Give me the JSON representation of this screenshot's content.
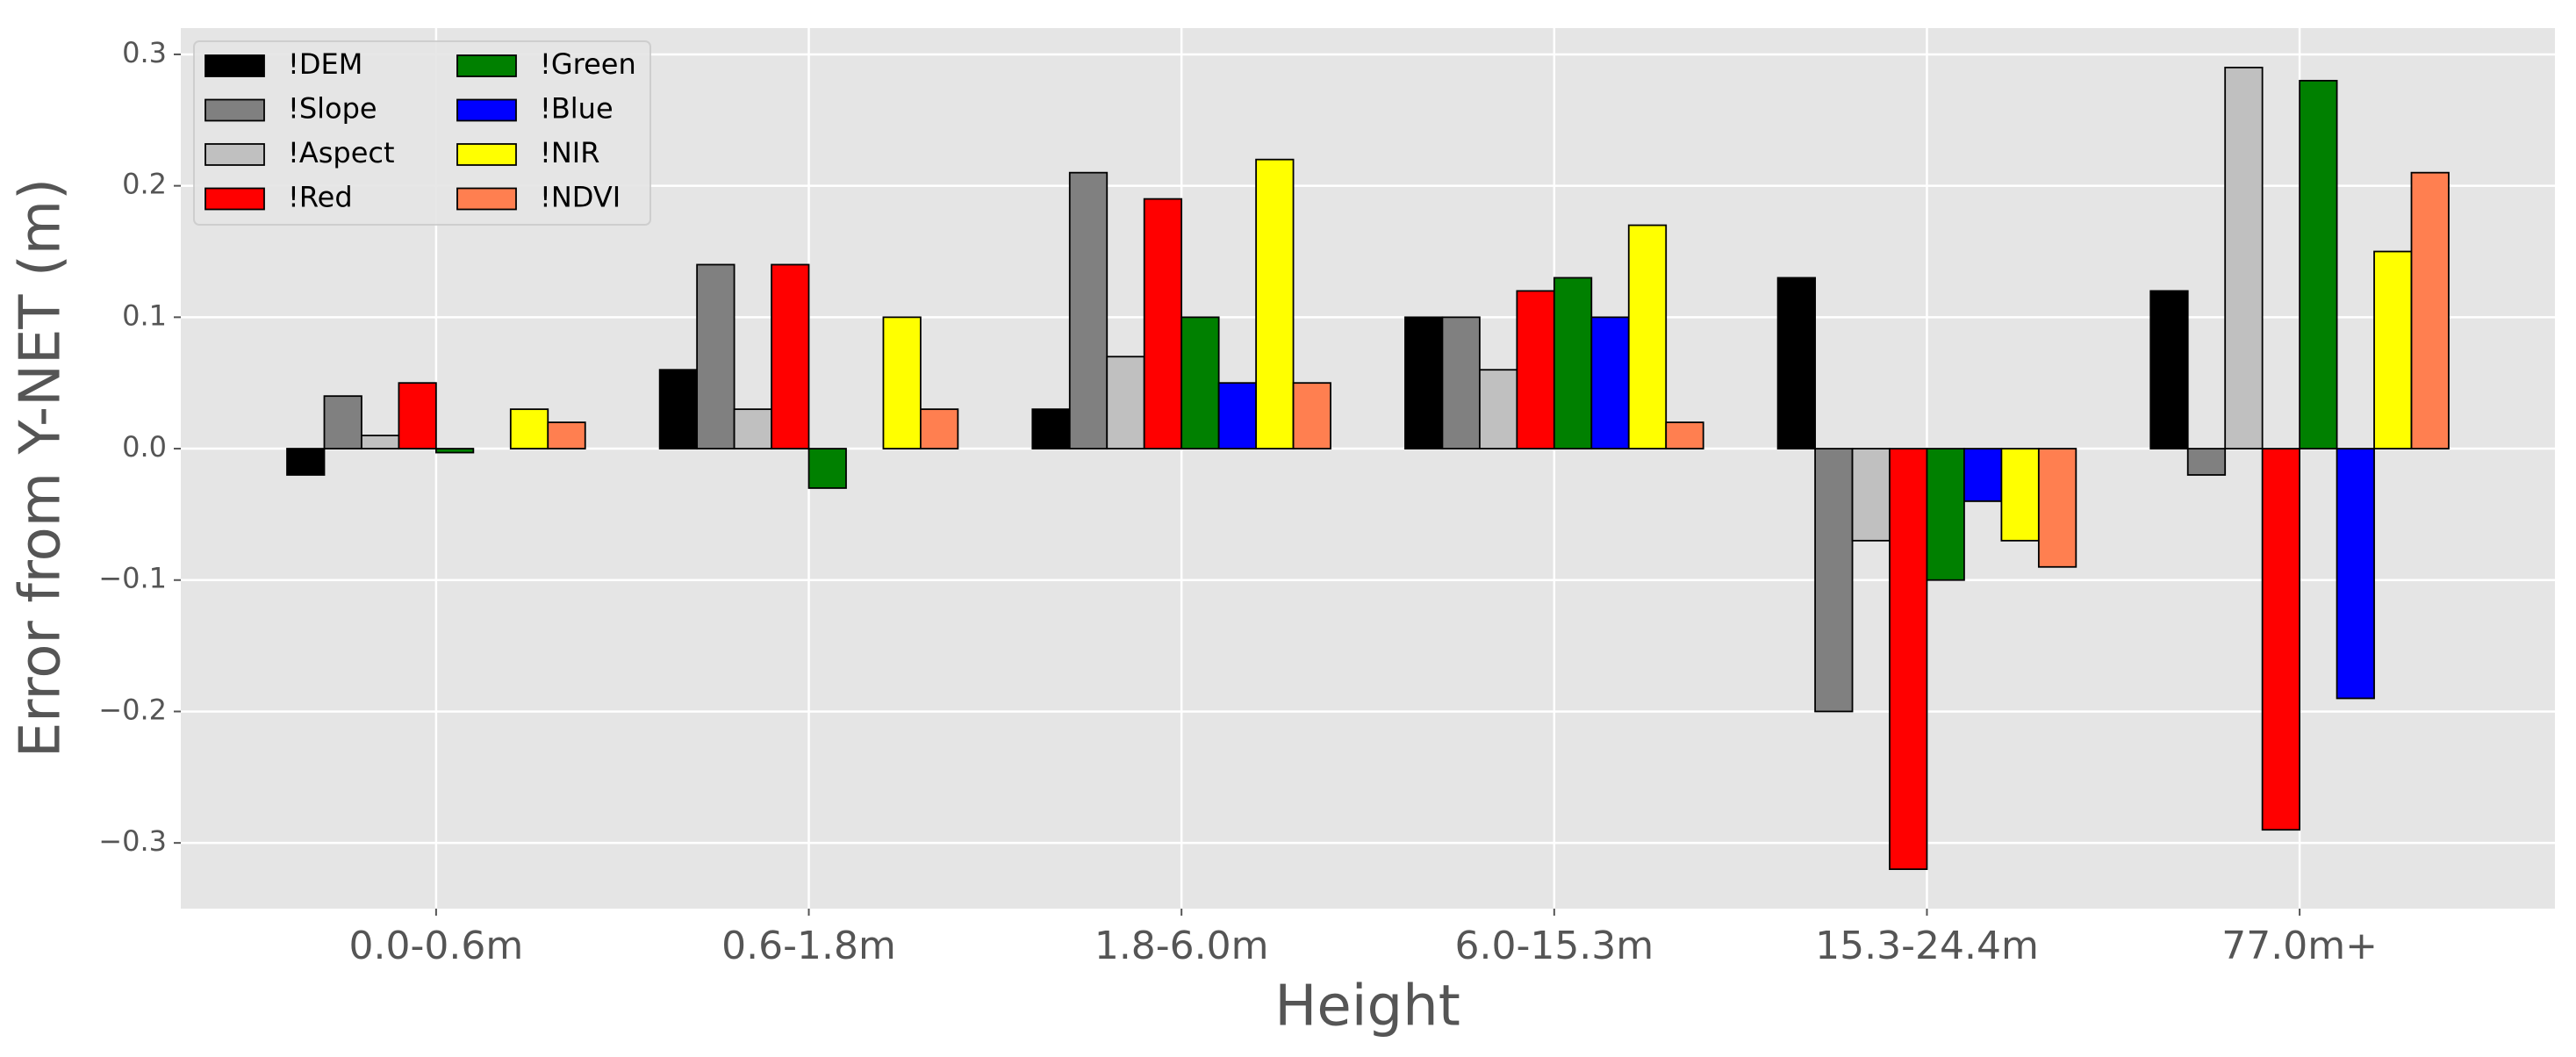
{
  "chart_data": {
    "type": "bar",
    "x_label": "Height",
    "y_label": "Error from Y-NET (m)",
    "categories": [
      "0.0-0.6m",
      "0.6-1.8m",
      "1.8-6.0m",
      "6.0-15.3m",
      "15.3-24.4m",
      "77.0m+"
    ],
    "series": [
      {
        "name": "!DEM",
        "color": "#000000",
        "values": [
          -0.02,
          0.06,
          0.03,
          0.1,
          0.13,
          0.12
        ]
      },
      {
        "name": "!Slope",
        "color": "#808080",
        "values": [
          0.04,
          0.14,
          0.21,
          0.1,
          -0.2,
          -0.02
        ]
      },
      {
        "name": "!Aspect",
        "color": "#c0c0c0",
        "values": [
          0.01,
          0.03,
          0.07,
          0.06,
          -0.07,
          0.29
        ]
      },
      {
        "name": "!Red",
        "color": "#ff0000",
        "values": [
          0.05,
          0.14,
          0.19,
          0.12,
          -0.32,
          -0.29
        ]
      },
      {
        "name": "!Green",
        "color": "#008000",
        "values": [
          -0.003,
          -0.03,
          0.1,
          0.13,
          -0.1,
          0.28
        ]
      },
      {
        "name": "!Blue",
        "color": "#0000ff",
        "values": [
          0,
          0,
          0.05,
          0.1,
          -0.04,
          -0.19
        ]
      },
      {
        "name": "!NIR",
        "color": "#ffff00",
        "values": [
          0.03,
          0.1,
          0.22,
          0.17,
          -0.07,
          0.15
        ]
      },
      {
        "name": "!NDVI",
        "color": "#ff7f50",
        "values": [
          0.02,
          0.03,
          0.05,
          0.02,
          -0.09,
          0.21
        ]
      }
    ],
    "ylim": [
      -0.35,
      0.32
    ],
    "yticks": [
      {
        "value": -0.3,
        "label": "−0.3"
      },
      {
        "value": -0.2,
        "label": "−0.2"
      },
      {
        "value": -0.1,
        "label": "−0.1"
      },
      {
        "value": 0,
        "label": "0.0"
      },
      0.1,
      0.2,
      0.3
    ],
    "grid": true,
    "legend": "upper left"
  }
}
